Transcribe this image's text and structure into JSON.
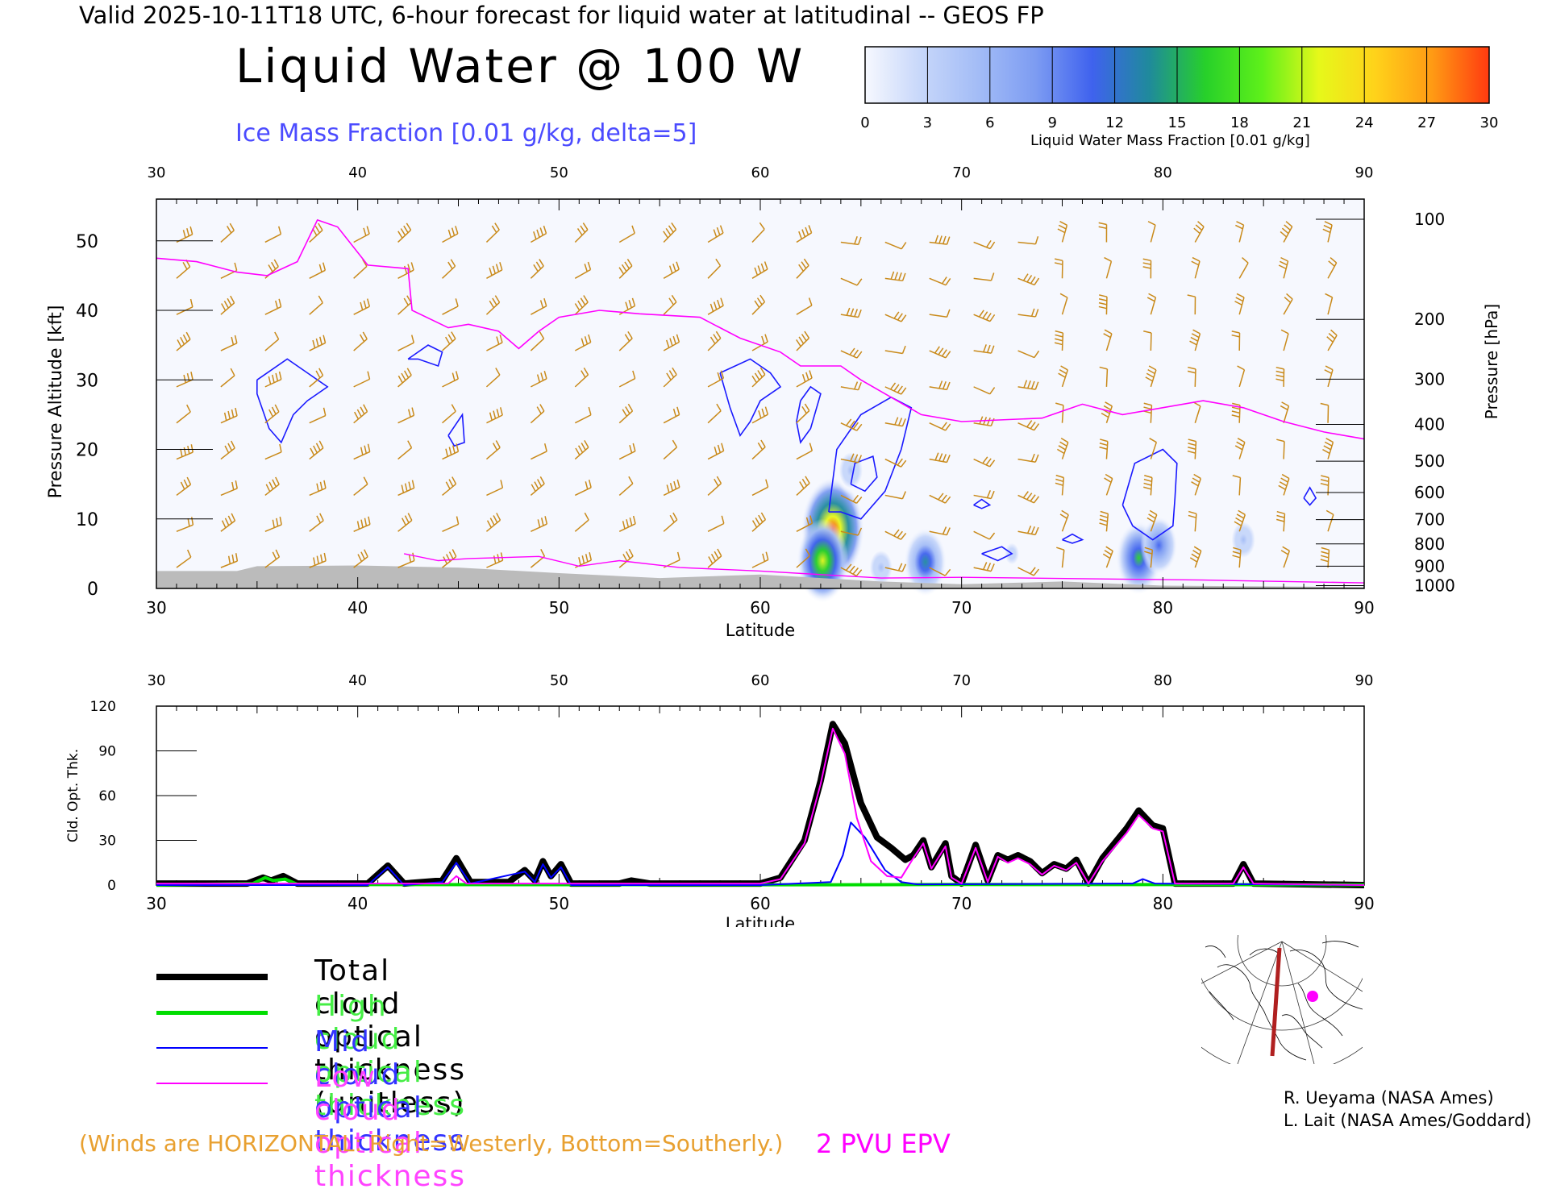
{
  "header": {
    "valid_line": "Valid 2025-10-11T18 UTC, 6-hour forecast for liquid water at latitudinal -- GEOS FP",
    "title": "Liquid Water @ 100 W",
    "ice_note": "Ice Mass Fraction [0.01 g/kg, delta=5]"
  },
  "colorbar": {
    "label": "Liquid Water Mass Fraction [0.01 g/kg]",
    "ticks": [
      "0",
      "3",
      "6",
      "9",
      "12",
      "15",
      "18",
      "21",
      "24",
      "27",
      "30"
    ],
    "colors": [
      "#f6f8fe",
      "#c6d6fa",
      "#a3bcf6",
      "#7d9cf2",
      "#3f62ee",
      "#1f8a9c",
      "#27d02a",
      "#5ef01a",
      "#e6f81a",
      "#ffd21a",
      "#ff9a14",
      "#ff3a10"
    ]
  },
  "chart_data": [
    {
      "type": "heatmap",
      "title": "Liquid Water @ 100 W",
      "xlabel": "Latitude",
      "ylabel": "Pressure Altitude [kft]",
      "ylabel_right": "Pressure [hPa]",
      "xlim": [
        30,
        90
      ],
      "ylim": [
        0,
        56
      ],
      "x_ticks": [
        "30",
        "40",
        "50",
        "60",
        "70",
        "80",
        "90"
      ],
      "y_ticks": [
        "0",
        "10",
        "20",
        "30",
        "40",
        "50"
      ],
      "pressure_ticks": [
        {
          "label": "100",
          "kft": 53.1
        },
        {
          "label": "200",
          "kft": 38.7
        },
        {
          "label": "300",
          "kft": 30.1
        },
        {
          "label": "400",
          "kft": 23.6
        },
        {
          "label": "500",
          "kft": 18.3
        },
        {
          "label": "600",
          "kft": 13.8
        },
        {
          "label": "700",
          "kft": 9.9
        },
        {
          "label": "800",
          "kft": 6.4
        },
        {
          "label": "900",
          "kft": 3.2
        },
        {
          "label": "1000",
          "kft": 0.4
        }
      ],
      "liquid_water_blobs": [
        {
          "lat": 63.6,
          "kft": 8.5,
          "value": 28
        },
        {
          "lat": 63.1,
          "kft": 4.0,
          "value": 20
        },
        {
          "lat": 68.2,
          "kft": 3.8,
          "value": 14
        },
        {
          "lat": 78.8,
          "kft": 4.4,
          "value": 16
        },
        {
          "lat": 79.8,
          "kft": 6.2,
          "value": 10
        },
        {
          "lat": 84.0,
          "kft": 7.0,
          "value": 6
        },
        {
          "lat": 64.5,
          "kft": 17.0,
          "value": 6
        },
        {
          "lat": 66.0,
          "kft": 3.0,
          "value": 5
        },
        {
          "lat": 72.5,
          "kft": 5.0,
          "value": 4
        },
        {
          "lat": 42.0,
          "kft": 19.0,
          "value": 2
        }
      ],
      "epv_2pvu_line": [
        [
          30,
          47.5
        ],
        [
          32,
          47
        ],
        [
          34,
          45.5
        ],
        [
          35.5,
          45
        ],
        [
          37,
          47
        ],
        [
          38,
          53
        ],
        [
          39,
          52
        ],
        [
          40.5,
          46.5
        ],
        [
          42.5,
          46
        ],
        [
          42.7,
          40
        ],
        [
          44.5,
          37.5
        ],
        [
          45.5,
          38
        ],
        [
          47,
          37
        ],
        [
          48,
          34.5
        ],
        [
          49,
          37
        ],
        [
          50,
          39
        ],
        [
          52,
          40
        ],
        [
          54,
          39.5
        ],
        [
          57,
          39
        ],
        [
          59,
          36
        ],
        [
          61,
          34
        ],
        [
          62,
          32
        ],
        [
          64,
          32
        ],
        [
          65,
          30
        ],
        [
          68,
          25
        ],
        [
          70,
          24
        ],
        [
          74,
          24.5
        ],
        [
          76,
          26.5
        ],
        [
          78,
          25
        ],
        [
          82,
          27
        ],
        [
          84,
          26
        ],
        [
          86,
          24
        ],
        [
          88,
          22.5
        ],
        [
          90,
          21.5
        ]
      ],
      "terrain_kft": [
        [
          30,
          2.5
        ],
        [
          34,
          2.5
        ],
        [
          35,
          3.2
        ],
        [
          40,
          3.3
        ],
        [
          45,
          3.0
        ],
        [
          50,
          2.2
        ],
        [
          55,
          1.5
        ],
        [
          60,
          2.0
        ],
        [
          63,
          1.5
        ],
        [
          66,
          1.0
        ],
        [
          70,
          0.6
        ],
        [
          75,
          1.0
        ],
        [
          80,
          0.4
        ],
        [
          85,
          0.3
        ],
        [
          90,
          0.2
        ]
      ]
    },
    {
      "type": "line",
      "xlabel": "Latitude",
      "ylabel": "Cld. Opt. Thk.",
      "xlim": [
        30,
        90
      ],
      "ylim": [
        0,
        120
      ],
      "x_ticks": [
        "30",
        "40",
        "50",
        "60",
        "70",
        "80",
        "90"
      ],
      "y_ticks": [
        "0",
        "30",
        "60",
        "90",
        "120"
      ],
      "series": [
        {
          "name": "Total cloud optical thickness (unitless)",
          "color": "#000000",
          "points": [
            [
              30,
              1
            ],
            [
              34.5,
              1
            ],
            [
              35.3,
              5
            ],
            [
              35.7,
              3
            ],
            [
              36.3,
              6
            ],
            [
              37,
              1
            ],
            [
              40.5,
              1
            ],
            [
              41.5,
              13
            ],
            [
              42.3,
              1
            ],
            [
              44.2,
              3
            ],
            [
              44.9,
              18
            ],
            [
              45.6,
              2
            ],
            [
              47.5,
              2
            ],
            [
              48.3,
              10
            ],
            [
              48.8,
              3
            ],
            [
              49.2,
              16
            ],
            [
              49.6,
              6
            ],
            [
              50.1,
              14
            ],
            [
              50.6,
              1
            ],
            [
              53,
              1
            ],
            [
              53.6,
              3
            ],
            [
              54.5,
              1
            ],
            [
              60,
              1
            ],
            [
              61,
              5
            ],
            [
              62.2,
              30
            ],
            [
              63,
              70
            ],
            [
              63.6,
              108
            ],
            [
              64.2,
              95
            ],
            [
              65,
              55
            ],
            [
              65.8,
              32
            ],
            [
              66.5,
              25
            ],
            [
              67.2,
              17
            ],
            [
              67.6,
              20
            ],
            [
              68.1,
              30
            ],
            [
              68.5,
              12
            ],
            [
              69.2,
              28
            ],
            [
              69.5,
              6
            ],
            [
              70,
              1
            ],
            [
              70.7,
              27
            ],
            [
              71.3,
              3
            ],
            [
              71.8,
              20
            ],
            [
              72.3,
              17
            ],
            [
              72.8,
              20
            ],
            [
              73.4,
              16
            ],
            [
              74,
              8
            ],
            [
              74.6,
              14
            ],
            [
              75.2,
              11
            ],
            [
              75.7,
              17
            ],
            [
              76.3,
              1
            ],
            [
              77,
              18
            ],
            [
              78.2,
              38
            ],
            [
              78.8,
              50
            ],
            [
              79.5,
              40
            ],
            [
              80,
              38
            ],
            [
              80.6,
              1
            ],
            [
              83.5,
              1
            ],
            [
              84,
              14
            ],
            [
              84.5,
              1
            ],
            [
              90,
              0
            ]
          ]
        },
        {
          "name": "High cloud optical thickness",
          "color": "#00dd00",
          "points": [
            [
              30,
              0
            ],
            [
              34.8,
              1
            ],
            [
              35.4,
              5
            ],
            [
              35.8,
              3
            ],
            [
              36.4,
              4
            ],
            [
              37,
              0.5
            ],
            [
              40,
              0.3
            ],
            [
              60,
              0.2
            ],
            [
              63.5,
              0.2
            ],
            [
              70,
              0.4
            ],
            [
              80,
              0.3
            ],
            [
              90,
              0.2
            ]
          ]
        },
        {
          "name": "Mid cloud optical thickness",
          "color": "#0000ff",
          "points": [
            [
              30,
              0
            ],
            [
              40.5,
              0
            ],
            [
              41.5,
              12
            ],
            [
              42.3,
              0
            ],
            [
              44.2,
              2
            ],
            [
              44.9,
              15
            ],
            [
              45.6,
              1
            ],
            [
              48.3,
              9
            ],
            [
              48.8,
              2
            ],
            [
              49.2,
              14
            ],
            [
              49.6,
              5
            ],
            [
              50.1,
              12
            ],
            [
              50.6,
              0
            ],
            [
              60,
              0
            ],
            [
              63.5,
              2
            ],
            [
              64.1,
              20
            ],
            [
              64.5,
              42
            ],
            [
              65.2,
              32
            ],
            [
              66.2,
              10
            ],
            [
              67,
              2
            ],
            [
              67.8,
              0.5
            ],
            [
              78.5,
              1
            ],
            [
              79,
              4
            ],
            [
              79.6,
              1
            ],
            [
              90,
              0
            ]
          ]
        },
        {
          "name": "Low cloud optical thickness",
          "color": "#ff00ff",
          "points": [
            [
              30,
              1
            ],
            [
              44.5,
              1
            ],
            [
              44.9,
              6
            ],
            [
              45.4,
              1
            ],
            [
              60,
              1
            ],
            [
              61,
              4
            ],
            [
              62.2,
              28
            ],
            [
              63,
              68
            ],
            [
              63.6,
              105
            ],
            [
              64.2,
              88
            ],
            [
              64.8,
              45
            ],
            [
              65.5,
              16
            ],
            [
              66.3,
              6
            ],
            [
              67,
              5
            ],
            [
              67.6,
              18
            ],
            [
              68.1,
              28
            ],
            [
              68.5,
              11
            ],
            [
              69.2,
              26
            ],
            [
              69.5,
              5
            ],
            [
              70,
              1
            ],
            [
              70.7,
              25
            ],
            [
              71.3,
              2
            ],
            [
              71.8,
              19
            ],
            [
              72.3,
              15
            ],
            [
              72.8,
              18
            ],
            [
              73.4,
              14
            ],
            [
              74,
              7
            ],
            [
              74.6,
              13
            ],
            [
              75.2,
              10
            ],
            [
              75.7,
              15
            ],
            [
              76.3,
              1
            ],
            [
              77,
              16
            ],
            [
              78.2,
              35
            ],
            [
              78.8,
              47
            ],
            [
              79.5,
              38
            ],
            [
              80,
              36
            ],
            [
              80.6,
              1
            ],
            [
              83.5,
              1
            ],
            [
              84,
              12
            ],
            [
              84.5,
              1
            ],
            [
              90,
              0
            ]
          ]
        }
      ]
    }
  ],
  "legend": [
    {
      "label": "Total cloud optical thickness (unitless)",
      "color": "#000000",
      "text_color": "#000000"
    },
    {
      "label": "High cloud optical thickness",
      "color": "#00dd00",
      "text_color": "#44ee44"
    },
    {
      "label": "Mid cloud optical thickness",
      "color": "#0000ff",
      "text_color": "#3333ff"
    },
    {
      "label": "Low cloud optical thickness",
      "color": "#ff00ff",
      "text_color": "#ff44ff"
    }
  ],
  "footer": {
    "winds_note": "(Winds are HORIZONTAL: Right=Westerly, Bottom=Southerly.)",
    "epv_note": "2 PVU EPV",
    "credit_1": "R. Ueyama (NASA Ames)",
    "credit_2": "L. Lait (NASA Ames/Goddard)"
  }
}
